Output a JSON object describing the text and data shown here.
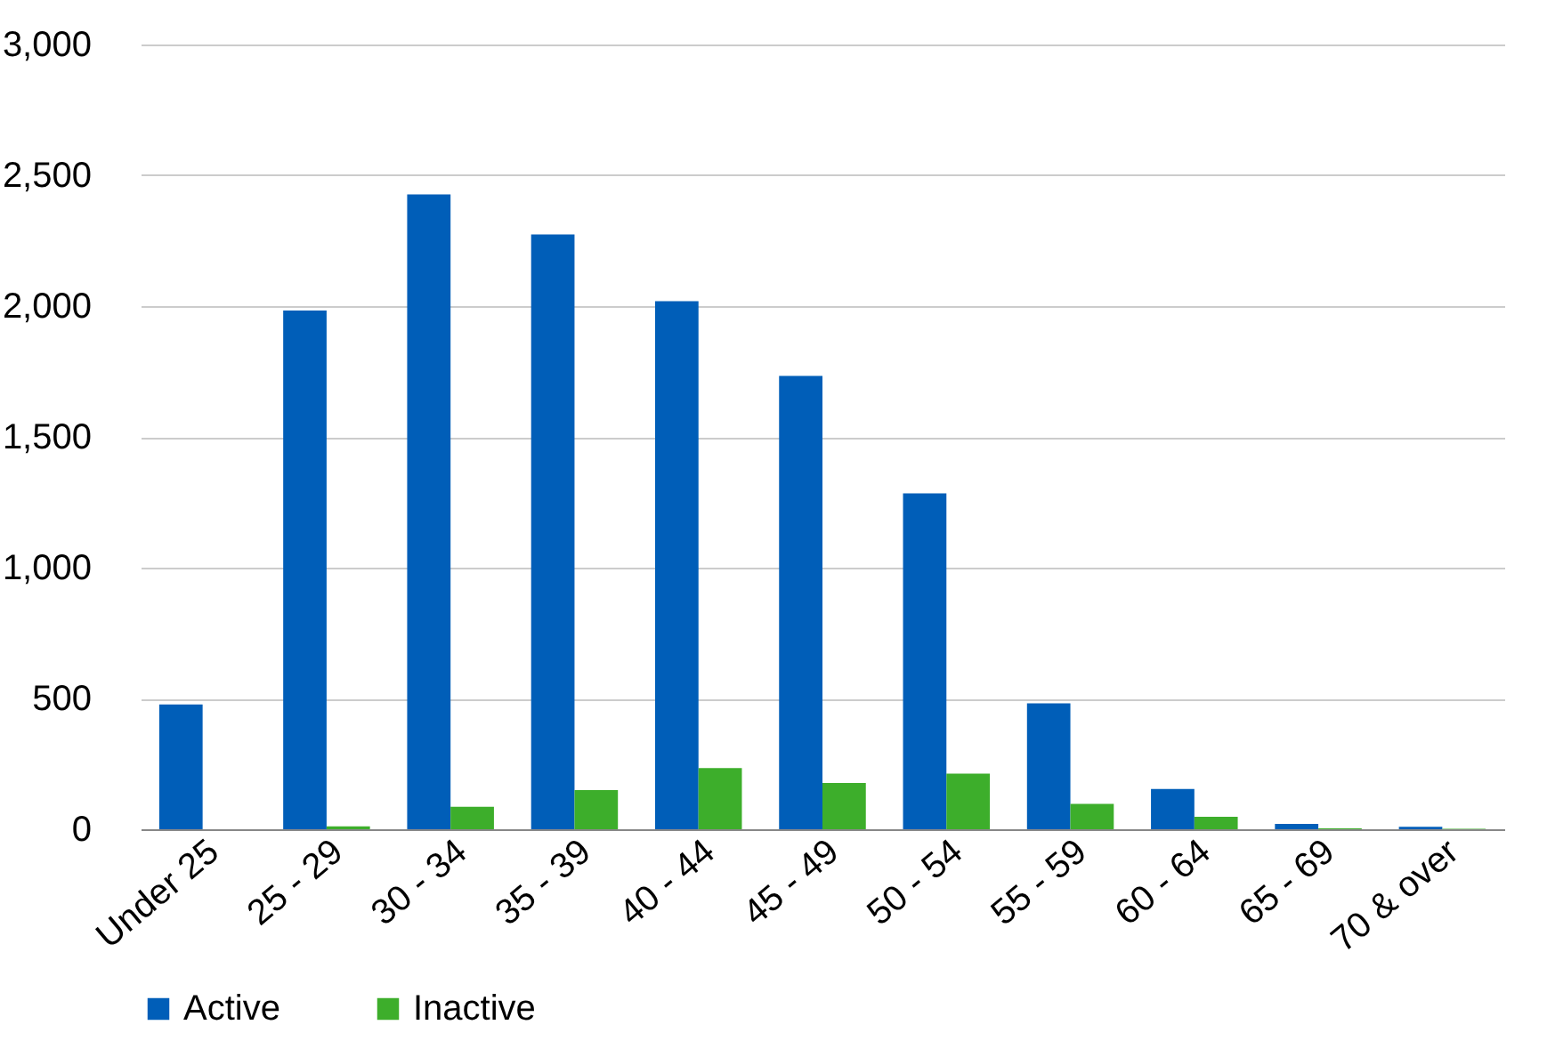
{
  "chart_data": {
    "type": "bar",
    "categories": [
      "Under 25",
      "25 - 29",
      "30 - 34",
      "35 - 39",
      "40 - 44",
      "45 - 49",
      "50 - 54",
      "55 - 59",
      "60 - 64",
      "65 - 69",
      "70 & over"
    ],
    "series": [
      {
        "name": "Active",
        "color": "#005eb8",
        "values": [
          477,
          1983,
          2427,
          2274,
          2019,
          1733,
          1284,
          481,
          154,
          20,
          9
        ]
      },
      {
        "name": "Inactive",
        "color": "#3dae2b",
        "values": [
          0,
          11,
          86,
          150,
          234,
          177,
          213,
          97,
          48,
          3,
          2
        ]
      }
    ],
    "ylim": [
      0,
      3000
    ],
    "yticks": [
      0,
      500,
      {
        "value": 1000,
        "label": "1,000"
      },
      {
        "value": 1500,
        "label": "1,500"
      },
      {
        "value": 2000,
        "label": "2,000"
      },
      {
        "value": 2500,
        "label": "2,500"
      },
      {
        "value": 3000,
        "label": "3,000"
      }
    ],
    "grid": "y",
    "legend": "bottom"
  }
}
